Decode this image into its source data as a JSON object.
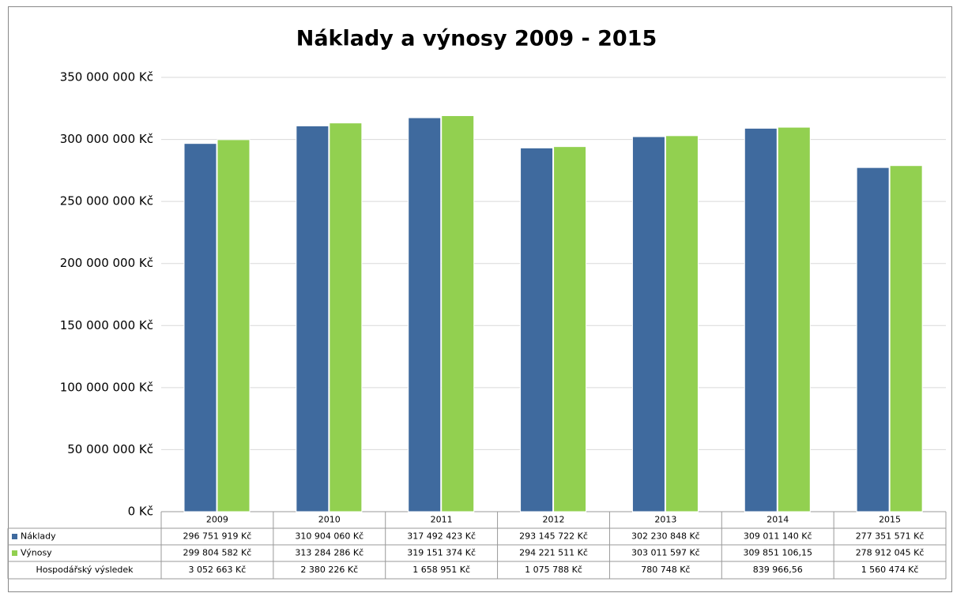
{
  "chart_data": {
    "type": "bar",
    "title": "Náklady a výnosy 2009 - 2015",
    "categories": [
      "2009",
      "2010",
      "2011",
      "2012",
      "2013",
      "2014",
      "2015"
    ],
    "series": [
      {
        "name": "Náklady",
        "color": "#3f6a9e",
        "values": [
          296751919,
          310904060,
          317492423,
          293145722,
          302230848,
          309011140,
          277351571
        ],
        "value_labels": [
          "296 751 919 Kč",
          "310 904 060 Kč",
          "317 492 423 Kč",
          "293 145 722 Kč",
          "302 230 848 Kč",
          "309 011 140 Kč",
          "277 351 571 Kč"
        ]
      },
      {
        "name": "Výnosy",
        "color": "#92d050",
        "values": [
          299804582,
          313284286,
          319151374,
          294221511,
          303011597,
          309851106.15,
          278912045
        ],
        "value_labels": [
          "299 804 582 Kč",
          "313 284 286 Kč",
          "319 151 374 Kč",
          "294 221 511 Kč",
          "303 011 597 Kč",
          "309 851 106,15",
          "278 912 045 Kč"
        ]
      }
    ],
    "data_table": {
      "name": "Hospodářský výsledek",
      "values": [
        3052663,
        2380226,
        1658951,
        1075788,
        780748,
        839966.56,
        1560474
      ],
      "value_labels": [
        "3 052 663 Kč",
        "2 380 226 Kč",
        "1 658 951 Kč",
        "1 075 788 Kč",
        "780 748 Kč",
        "839 966,56",
        "1 560 474 Kč"
      ]
    },
    "ylim": [
      0,
      350000000
    ],
    "yticks": [
      {
        "value": 0,
        "label": "0 Kč"
      },
      {
        "value": 50000000,
        "label": "50 000 000 Kč"
      },
      {
        "value": 100000000,
        "label": "100 000 000 Kč"
      },
      {
        "value": 150000000,
        "label": "150 000 000 Kč"
      },
      {
        "value": 200000000,
        "label": "200 000 000 Kč"
      },
      {
        "value": 250000000,
        "label": "250 000 000 Kč"
      },
      {
        "value": 300000000,
        "label": "300 000 000 Kč"
      },
      {
        "value": 350000000,
        "label": "350 000 000 Kč"
      }
    ],
    "grid": true
  }
}
